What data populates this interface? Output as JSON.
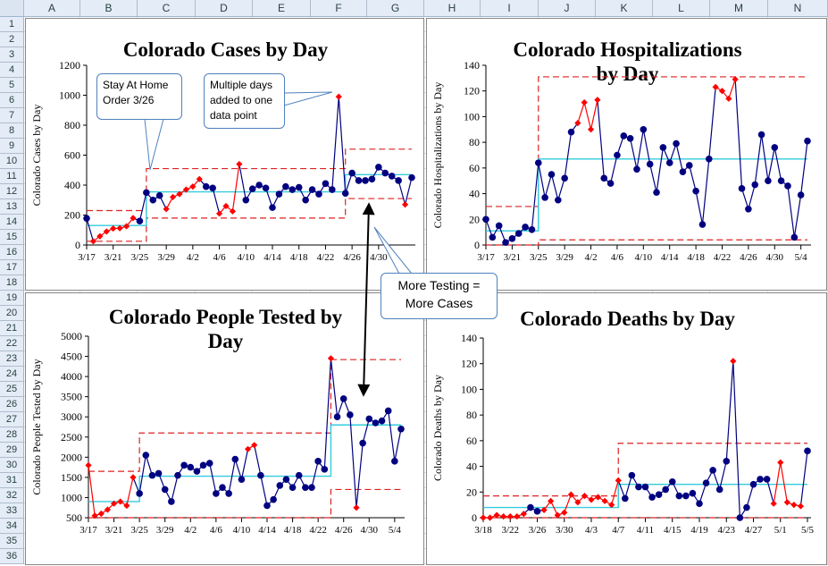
{
  "columns": [
    "A",
    "B",
    "C",
    "D",
    "E",
    "F",
    "G",
    "H",
    "I",
    "J",
    "K",
    "L",
    "M",
    "N"
  ],
  "rows": [
    "1",
    "2",
    "3",
    "4",
    "5",
    "6",
    "7",
    "8",
    "9",
    "10",
    "11",
    "12",
    "13",
    "14",
    "15",
    "16",
    "17",
    "18",
    "19",
    "20",
    "21",
    "22",
    "23",
    "24",
    "25",
    "26",
    "27",
    "28",
    "29",
    "30",
    "31",
    "32",
    "33",
    "34",
    "35",
    "36"
  ],
  "callouts": {
    "stay_home": [
      "Stay At Home",
      "Order 3/26"
    ],
    "multiple_days": [
      "Multiple days",
      "added to one",
      "data point"
    ],
    "more_testing": [
      "More Testing =",
      "More Cases"
    ]
  },
  "colors": {
    "series_normal": "#000080",
    "series_signal": "#ff0000",
    "center_line": "#33ccdd",
    "limit_line": "#dd2222"
  },
  "chart_data": [
    {
      "id": "cases",
      "type": "line",
      "title": "Colorado Cases by Day",
      "ylabel": "Colorado Cases by Day",
      "ylim": [
        0,
        1200
      ],
      "yticks": [
        0,
        200,
        400,
        600,
        800,
        1000,
        1200
      ],
      "xticks": [
        "3/17",
        "3/21",
        "3/25",
        "3/29",
        "4/2",
        "4/6",
        "4/10",
        "4/14",
        "4/18",
        "4/22",
        "4/26",
        "4/30"
      ],
      "xtick_step": 4,
      "n_points": 50,
      "values": [
        178,
        25,
        58,
        90,
        110,
        112,
        125,
        180,
        160,
        350,
        300,
        330,
        240,
        320,
        340,
        370,
        390,
        440,
        390,
        380,
        210,
        260,
        225,
        540,
        300,
        375,
        400,
        380,
        250,
        340,
        390,
        370,
        385,
        300,
        370,
        340,
        410,
        370,
        990,
        345,
        480,
        430,
        430,
        440,
        520,
        480,
        460,
        430,
        270,
        450
      ],
      "signal": [
        false,
        true,
        true,
        true,
        true,
        true,
        true,
        true,
        false,
        false,
        false,
        false,
        true,
        true,
        true,
        true,
        true,
        true,
        false,
        false,
        true,
        true,
        true,
        true,
        false,
        false,
        false,
        false,
        false,
        false,
        false,
        false,
        false,
        false,
        false,
        false,
        false,
        false,
        true,
        false,
        false,
        false,
        false,
        false,
        false,
        false,
        false,
        false,
        true,
        false
      ],
      "phases": [
        {
          "start": 0,
          "end": 9,
          "center": 130,
          "lower": 25,
          "upper": 230
        },
        {
          "start": 9,
          "end": 39,
          "center": 355,
          "lower": 180,
          "upper": 510
        },
        {
          "start": 39,
          "end": 49,
          "center": 470,
          "lower": 310,
          "upper": 640
        }
      ]
    },
    {
      "id": "hospitalizations",
      "type": "line",
      "title": "Colorado Hospitalizations by Day",
      "ylabel": "Colorado Hospitalizations by Day",
      "ylim": [
        0,
        140
      ],
      "yticks": [
        0,
        20,
        40,
        60,
        80,
        100,
        120,
        140
      ],
      "xticks": [
        "3/17",
        "3/21",
        "3/25",
        "3/29",
        "4/2",
        "4/6",
        "4/10",
        "4/14",
        "4/18",
        "4/22",
        "4/26",
        "4/30",
        "5/4"
      ],
      "xtick_step": 4,
      "n_points": 50,
      "values": [
        20,
        6,
        15,
        2,
        5,
        9,
        14,
        12,
        64,
        37,
        55,
        35,
        52,
        88,
        95,
        111,
        90,
        113,
        52,
        48,
        70,
        85,
        83,
        59,
        90,
        63,
        41,
        76,
        64,
        79,
        57,
        62,
        42,
        16,
        67,
        123,
        120,
        114,
        129,
        44,
        28,
        47,
        86,
        50,
        76,
        50,
        46,
        6,
        39,
        81
      ],
      "signal": [
        false,
        false,
        false,
        false,
        false,
        false,
        false,
        false,
        false,
        false,
        false,
        false,
        false,
        false,
        true,
        true,
        true,
        true,
        false,
        false,
        false,
        false,
        false,
        false,
        false,
        false,
        false,
        false,
        false,
        false,
        false,
        false,
        false,
        false,
        false,
        true,
        true,
        true,
        true,
        false,
        false,
        false,
        false,
        false,
        false,
        false,
        false,
        false,
        false,
        false
      ],
      "phases": [
        {
          "start": 0,
          "end": 8,
          "center": 11,
          "lower": 0,
          "upper": 30
        },
        {
          "start": 8,
          "end": 49,
          "center": 67,
          "lower": 4,
          "upper": 131
        }
      ]
    },
    {
      "id": "tested",
      "type": "line",
      "title": "Colorado People Tested by Day",
      "ylabel": "Colorado People Tested by Day",
      "ylim": [
        500,
        5000
      ],
      "yticks": [
        500,
        1000,
        1500,
        2000,
        2500,
        3000,
        3500,
        4000,
        4500,
        5000
      ],
      "xticks": [
        "3/17",
        "3/21",
        "3/25",
        "3/29",
        "4/2",
        "4/6",
        "4/10",
        "4/14",
        "4/18",
        "4/22",
        "4/26",
        "4/30",
        "5/4"
      ],
      "xtick_step": 4,
      "n_points": 50,
      "values": [
        1800,
        550,
        600,
        700,
        850,
        900,
        800,
        1500,
        1100,
        2050,
        1550,
        1600,
        1200,
        900,
        1550,
        1800,
        1750,
        1650,
        1800,
        1850,
        1100,
        1250,
        1100,
        1950,
        1450,
        2200,
        2300,
        1550,
        800,
        950,
        1300,
        1450,
        1250,
        1550,
        1250,
        1250,
        1900,
        1700,
        4450,
        3000,
        3450,
        3050,
        750,
        2350,
        2950,
        2850,
        2900,
        3150,
        1900,
        2700
      ],
      "signal": [
        true,
        true,
        true,
        true,
        true,
        true,
        true,
        true,
        false,
        false,
        false,
        false,
        false,
        false,
        false,
        false,
        false,
        false,
        false,
        false,
        false,
        false,
        false,
        false,
        false,
        true,
        true,
        false,
        false,
        false,
        false,
        false,
        false,
        false,
        false,
        false,
        false,
        false,
        true,
        false,
        false,
        false,
        true,
        false,
        false,
        false,
        false,
        false,
        false,
        false
      ],
      "phases": [
        {
          "start": 0,
          "end": 8,
          "center": 900,
          "lower": 500,
          "upper": 1650
        },
        {
          "start": 8,
          "end": 38,
          "center": 1530,
          "lower": 500,
          "upper": 2600
        },
        {
          "start": 38,
          "end": 49,
          "center": 2800,
          "lower": 1200,
          "upper": 4420
        }
      ]
    },
    {
      "id": "deaths",
      "type": "line",
      "title": "Colorado Deaths by Day",
      "ylabel": "Colorado Deaths by Day",
      "ylim": [
        0,
        140
      ],
      "yticks": [
        0,
        20,
        40,
        60,
        80,
        100,
        120,
        140
      ],
      "xticks": [
        "3/18",
        "3/22",
        "3/26",
        "3/30",
        "4/3",
        "4/7",
        "4/11",
        "4/15",
        "4/19",
        "4/23",
        "4/27",
        "5/1",
        "5/5"
      ],
      "xtick_step": 4,
      "n_points": 49,
      "values": [
        0,
        0,
        2,
        1,
        1,
        1,
        3,
        8,
        5,
        6,
        13,
        2,
        4,
        18,
        12,
        17,
        14,
        16,
        13,
        10,
        29,
        15,
        33,
        24,
        24,
        16,
        18,
        22,
        28,
        17,
        17,
        19,
        11,
        27,
        37,
        22,
        44,
        122,
        0,
        8,
        26,
        30,
        30,
        11,
        43,
        12,
        10,
        9,
        52
      ],
      "signal": [
        true,
        true,
        true,
        true,
        true,
        true,
        true,
        false,
        false,
        true,
        true,
        true,
        true,
        true,
        true,
        true,
        true,
        true,
        true,
        true,
        true,
        false,
        false,
        false,
        false,
        false,
        false,
        false,
        false,
        false,
        false,
        false,
        false,
        false,
        false,
        false,
        false,
        true,
        false,
        false,
        false,
        false,
        false,
        true,
        true,
        true,
        true,
        true,
        false
      ],
      "phases": [
        {
          "start": 0,
          "end": 20,
          "center": 8,
          "lower": 0,
          "upper": 17
        },
        {
          "start": 20,
          "end": 48,
          "center": 26,
          "lower": 0,
          "upper": 58
        }
      ]
    }
  ]
}
